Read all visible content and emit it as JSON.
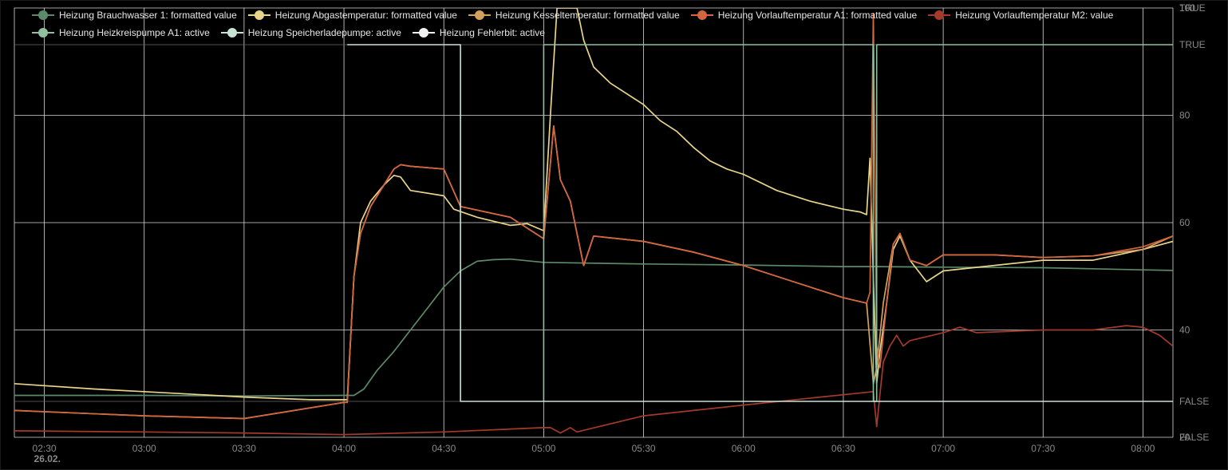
{
  "chart_data": {
    "type": "line",
    "x_unit": "time of day (26.02.)",
    "date_label": "26.02.",
    "xlim": [
      "02:21",
      "08:09"
    ],
    "x_ticks": [
      "02:30",
      "03:00",
      "03:30",
      "04:00",
      "04:30",
      "05:00",
      "05:30",
      "06:00",
      "06:30",
      "07:00",
      "07:30",
      "08:00"
    ],
    "y_ticks": [
      "20",
      "40",
      "60",
      "80",
      "100"
    ],
    "ylim": [
      20,
      100
    ],
    "bool_ticks": [
      "FALSE",
      "TRUE"
    ],
    "grid": true,
    "legend_position": "top",
    "series": [
      {
        "name": "Heizung Brauchwasser 1: formatted value",
        "color": "#5b8a6a",
        "axis": "temp",
        "points": [
          [
            "02:21",
            27.8
          ],
          [
            "03:00",
            27.8
          ],
          [
            "03:30",
            27.7
          ],
          [
            "04:00",
            27.8
          ],
          [
            "04:03",
            27.8
          ],
          [
            "04:06",
            29
          ],
          [
            "04:10",
            32.5
          ],
          [
            "04:15",
            36
          ],
          [
            "04:20",
            40
          ],
          [
            "04:25",
            44
          ],
          [
            "04:30",
            48
          ],
          [
            "04:35",
            51
          ],
          [
            "04:40",
            52.8
          ],
          [
            "04:45",
            53.1
          ],
          [
            "04:50",
            53.2
          ],
          [
            "05:00",
            52.6
          ],
          [
            "05:30",
            52.3
          ],
          [
            "06:00",
            52.1
          ],
          [
            "06:30",
            51.8
          ],
          [
            "06:40",
            51.8
          ],
          [
            "07:00",
            51.7
          ],
          [
            "07:30",
            51.6
          ],
          [
            "08:00",
            51.2
          ],
          [
            "08:09",
            51.1
          ]
        ]
      },
      {
        "name": "Heizung Abgastemperatur: formatted value",
        "color": "#e8d48a",
        "axis": "temp",
        "points": [
          [
            "02:21",
            30
          ],
          [
            "02:45",
            29
          ],
          [
            "03:00",
            28.5
          ],
          [
            "03:30",
            27.5
          ],
          [
            "03:50",
            27
          ],
          [
            "04:00",
            27
          ],
          [
            "04:01",
            27
          ],
          [
            "04:03",
            50
          ],
          [
            "04:05",
            60
          ],
          [
            "04:08",
            64
          ],
          [
            "04:12",
            67
          ],
          [
            "04:15",
            68.8
          ],
          [
            "04:17",
            68.5
          ],
          [
            "04:20",
            66
          ],
          [
            "04:30",
            65
          ],
          [
            "04:33",
            62.5
          ],
          [
            "04:40",
            61
          ],
          [
            "04:50",
            59.5
          ],
          [
            "04:55",
            59.8
          ],
          [
            "05:00",
            58.5
          ],
          [
            "05:02",
            80
          ],
          [
            "05:04",
            100
          ],
          [
            "05:10",
            100
          ],
          [
            "05:12",
            94
          ],
          [
            "05:15",
            89
          ],
          [
            "05:20",
            86
          ],
          [
            "05:30",
            82
          ],
          [
            "05:35",
            79
          ],
          [
            "05:40",
            77
          ],
          [
            "05:45",
            74
          ],
          [
            "05:50",
            71.5
          ],
          [
            "05:55",
            70
          ],
          [
            "06:00",
            69
          ],
          [
            "06:10",
            66
          ],
          [
            "06:20",
            64
          ],
          [
            "06:30",
            62.5
          ],
          [
            "06:35",
            62
          ],
          [
            "06:37",
            61.5
          ],
          [
            "06:38",
            72
          ],
          [
            "06:39",
            50
          ],
          [
            "06:40",
            30
          ],
          [
            "06:41",
            36
          ],
          [
            "06:43",
            45
          ],
          [
            "06:45",
            55
          ],
          [
            "06:47",
            57.5
          ],
          [
            "06:50",
            53
          ],
          [
            "06:55",
            49
          ],
          [
            "07:00",
            51
          ],
          [
            "07:30",
            53
          ],
          [
            "07:45",
            53
          ],
          [
            "08:00",
            55
          ],
          [
            "08:09",
            56.5
          ]
        ]
      },
      {
        "name": "Heizung Kesseltemperatur: formatted value",
        "color": "#d4a15a",
        "axis": "temp",
        "points": [
          [
            "02:21",
            25
          ],
          [
            "03:00",
            24
          ],
          [
            "03:30",
            23.5
          ],
          [
            "04:00",
            26.5
          ],
          [
            "04:01",
            26.5
          ],
          [
            "04:03",
            50
          ],
          [
            "04:05",
            58
          ],
          [
            "04:08",
            63
          ],
          [
            "04:12",
            67
          ],
          [
            "04:15",
            70
          ],
          [
            "04:17",
            70.8
          ],
          [
            "04:20",
            70.5
          ],
          [
            "04:30",
            70
          ],
          [
            "04:35",
            63
          ],
          [
            "04:50",
            61
          ],
          [
            "05:00",
            57
          ],
          [
            "05:03",
            78
          ],
          [
            "05:05",
            68
          ],
          [
            "05:08",
            64
          ],
          [
            "05:10",
            58
          ],
          [
            "05:12",
            52
          ],
          [
            "05:15",
            57.5
          ],
          [
            "05:30",
            56.5
          ],
          [
            "05:45",
            54.5
          ],
          [
            "06:00",
            52
          ],
          [
            "06:15",
            49
          ],
          [
            "06:30",
            46
          ],
          [
            "06:37",
            45
          ],
          [
            "06:39",
            30
          ],
          [
            "06:40",
            33
          ],
          [
            "06:42",
            45
          ],
          [
            "06:45",
            56
          ],
          [
            "06:47",
            58
          ],
          [
            "06:50",
            53
          ],
          [
            "06:55",
            52
          ],
          [
            "07:00",
            54
          ],
          [
            "07:15",
            54
          ],
          [
            "07:30",
            53.5
          ],
          [
            "07:45",
            53.8
          ],
          [
            "08:00",
            55
          ],
          [
            "08:09",
            57.5
          ]
        ]
      },
      {
        "name": "Heizung Vorlauftemperatur A1: formatted value",
        "color": "#d4663f",
        "axis": "temp",
        "points": [
          [
            "02:21",
            25
          ],
          [
            "03:00",
            24
          ],
          [
            "03:30",
            23.5
          ],
          [
            "04:00",
            26.5
          ],
          [
            "04:01",
            26.5
          ],
          [
            "04:03",
            50
          ],
          [
            "04:05",
            58
          ],
          [
            "04:08",
            63
          ],
          [
            "04:12",
            67
          ],
          [
            "04:15",
            70
          ],
          [
            "04:17",
            70.8
          ],
          [
            "04:20",
            70.5
          ],
          [
            "04:30",
            70
          ],
          [
            "04:35",
            63
          ],
          [
            "04:50",
            61
          ],
          [
            "05:00",
            57
          ],
          [
            "05:03",
            78
          ],
          [
            "05:05",
            68
          ],
          [
            "05:08",
            64
          ],
          [
            "05:10",
            58
          ],
          [
            "05:12",
            52
          ],
          [
            "05:15",
            57.5
          ],
          [
            "05:30",
            56.5
          ],
          [
            "05:45",
            54.5
          ],
          [
            "06:00",
            52
          ],
          [
            "06:15",
            49
          ],
          [
            "06:30",
            46
          ],
          [
            "06:37",
            45
          ],
          [
            "06:38",
            47
          ],
          [
            "06:39",
            99
          ],
          [
            "06:40",
            37
          ],
          [
            "06:41",
            33
          ],
          [
            "06:43",
            45
          ],
          [
            "06:45",
            56
          ],
          [
            "06:47",
            58
          ],
          [
            "06:50",
            53
          ],
          [
            "06:55",
            52
          ],
          [
            "07:00",
            54
          ],
          [
            "07:15",
            54
          ],
          [
            "07:30",
            53.5
          ],
          [
            "07:45",
            53.8
          ],
          [
            "08:00",
            55.5
          ],
          [
            "08:09",
            57.5
          ]
        ]
      },
      {
        "name": "Heizung Vorlauftemperatur M2: value",
        "color": "#a33a2a",
        "axis": "temp",
        "points": [
          [
            "02:21",
            21.2
          ],
          [
            "03:00",
            21
          ],
          [
            "03:30",
            20.8
          ],
          [
            "04:00",
            20.5
          ],
          [
            "04:30",
            21
          ],
          [
            "05:00",
            21.8
          ],
          [
            "05:02",
            21.8
          ],
          [
            "05:05",
            20.8
          ],
          [
            "05:08",
            21.8
          ],
          [
            "05:10",
            21
          ],
          [
            "05:30",
            24
          ],
          [
            "06:00",
            26
          ],
          [
            "06:39",
            28.5
          ],
          [
            "06:40",
            22
          ],
          [
            "06:41",
            28
          ],
          [
            "06:42",
            34
          ],
          [
            "06:44",
            37
          ],
          [
            "06:46",
            39
          ],
          [
            "06:48",
            37
          ],
          [
            "06:50",
            38
          ],
          [
            "07:00",
            39.5
          ],
          [
            "07:05",
            40.5
          ],
          [
            "07:10",
            39.5
          ],
          [
            "07:30",
            40
          ],
          [
            "07:45",
            40
          ],
          [
            "07:55",
            40.8
          ],
          [
            "08:00",
            40.5
          ],
          [
            "08:05",
            39
          ],
          [
            "08:09",
            37
          ]
        ]
      },
      {
        "name": "Heizung Heizkreispumpe A1: active",
        "color": "#8fc0a0",
        "axis": "bool",
        "points": [
          [
            "05:00",
            0
          ],
          [
            "05:00",
            1
          ],
          [
            "06:39",
            1
          ],
          [
            "06:39",
            0
          ],
          [
            "06:40",
            0
          ],
          [
            "06:40",
            1
          ],
          [
            "08:09",
            1
          ]
        ]
      },
      {
        "name": "Heizung Speicherladepumpe: active",
        "color": "#c9e2d6",
        "axis": "bool",
        "points": [
          [
            "04:01",
            1
          ],
          [
            "04:35",
            1
          ],
          [
            "04:35",
            0
          ],
          [
            "08:09",
            0
          ]
        ]
      },
      {
        "name": "Heizung Fehlerbit: active",
        "color": "#f2f2f2",
        "axis": "bool",
        "points": []
      }
    ]
  }
}
